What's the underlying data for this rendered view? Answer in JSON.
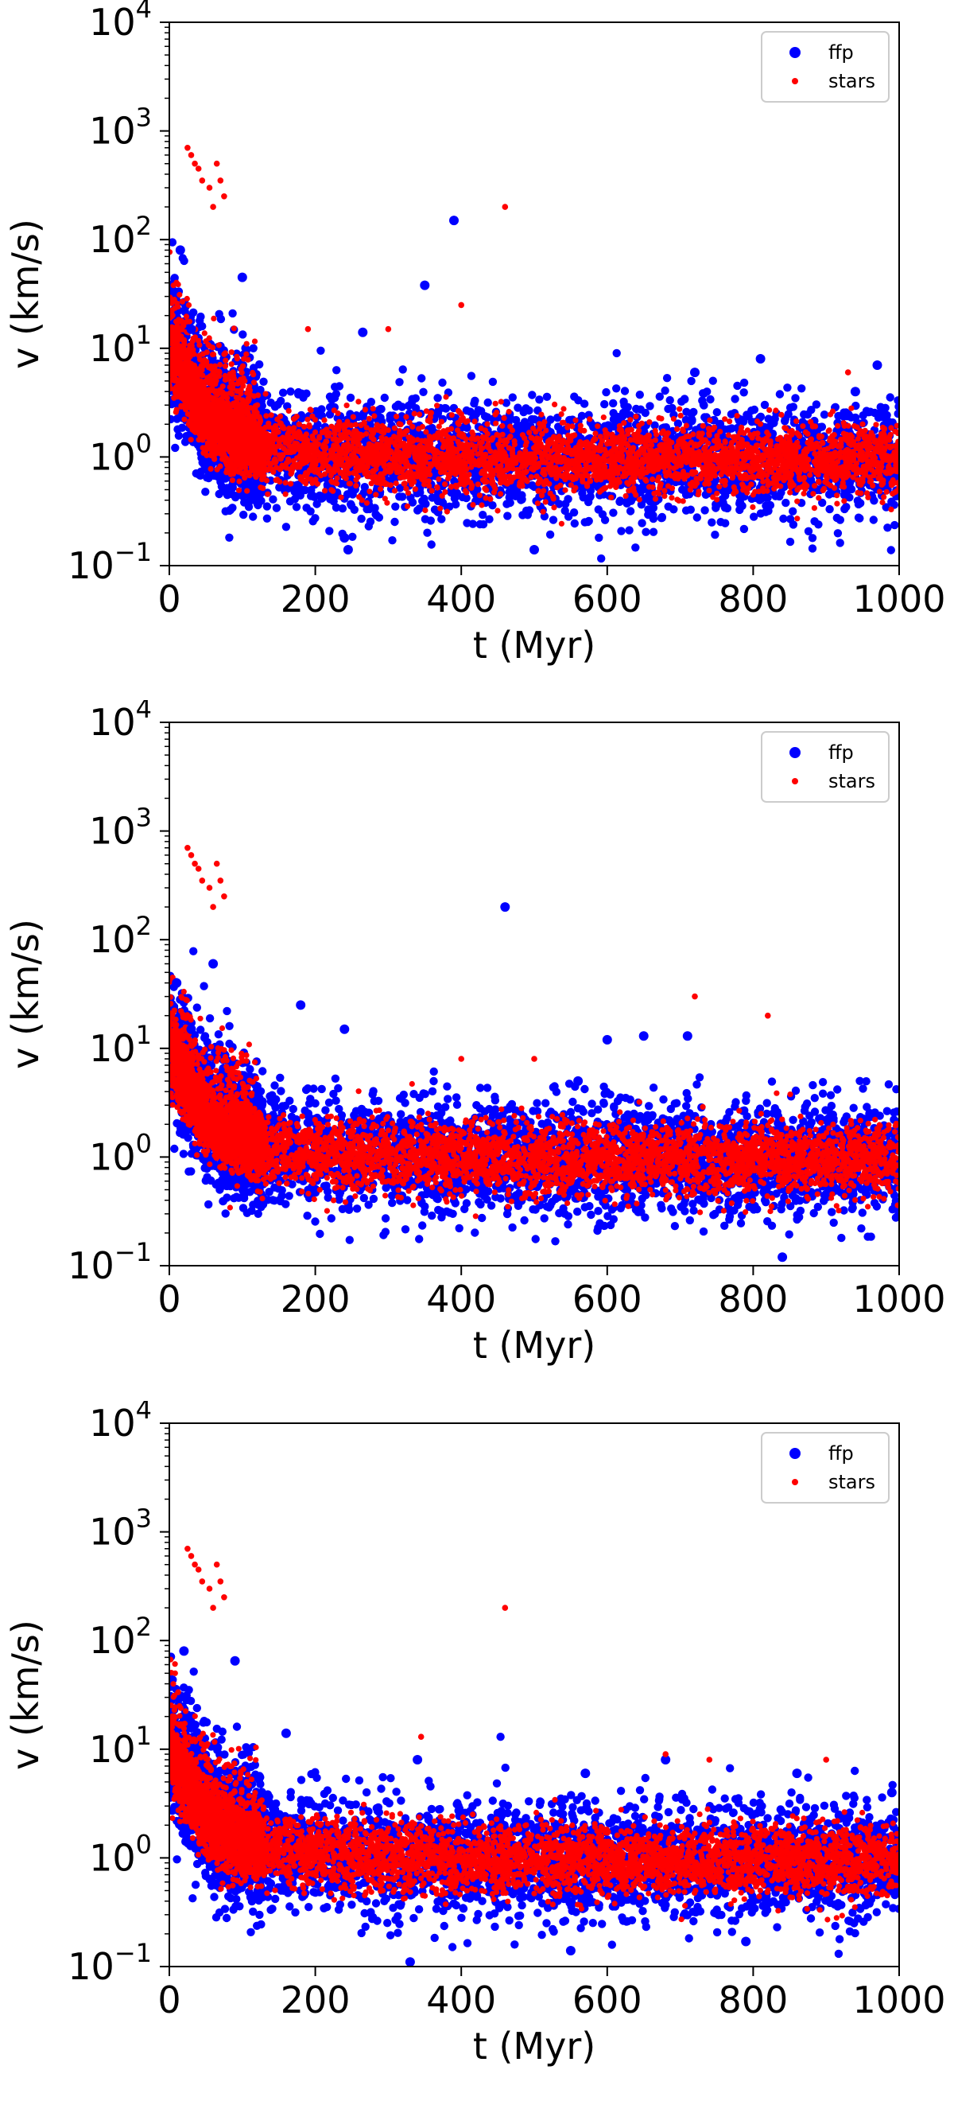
{
  "legend_labels": {
    "ffp": "ffp",
    "stars": "stars"
  },
  "colors": {
    "ffp": "#0000ff",
    "stars": "#ff0000",
    "axes": "#000000"
  },
  "chart_data": [
    {
      "type": "scatter",
      "xlabel": "t (Myr)",
      "ylabel": "v (km/s)",
      "xlim": [
        0,
        1000
      ],
      "ylim": [
        0.1,
        10000
      ],
      "yscale": "log",
      "xticks": [
        "0",
        "200",
        "400",
        "600",
        "800",
        "1000"
      ],
      "yticks": [
        {
          "base": "10",
          "exp": "−1"
        },
        {
          "base": "10",
          "exp": "0"
        },
        {
          "base": "10",
          "exp": "1"
        },
        {
          "base": "10",
          "exp": "2"
        },
        {
          "base": "10",
          "exp": "3"
        },
        {
          "base": "10",
          "exp": "4"
        }
      ],
      "grid": false,
      "legend": "top-right",
      "series": [
        {
          "name": "ffp",
          "color": "#0000ff",
          "points": [
            [
              15,
              80
            ],
            [
              30,
              15
            ],
            [
              100,
              45
            ],
            [
              240,
              0.18
            ],
            [
              245,
              0.14
            ],
            [
              265,
              14
            ],
            [
              350,
              38
            ],
            [
              390,
              150
            ],
            [
              500,
              0.14
            ],
            [
              720,
              6
            ],
            [
              810,
              8
            ],
            [
              940,
              4
            ],
            [
              970,
              7
            ]
          ]
        },
        {
          "name": "stars",
          "color": "#ff0000",
          "points": [
            [
              25,
              700
            ],
            [
              30,
              600
            ],
            [
              35,
              500
            ],
            [
              40,
              450
            ],
            [
              45,
              350
            ],
            [
              55,
              300
            ],
            [
              60,
              200
            ],
            [
              65,
              500
            ],
            [
              70,
              350
            ],
            [
              75,
              250
            ],
            [
              460,
              200
            ],
            [
              190,
              15
            ],
            [
              300,
              15
            ],
            [
              400,
              25
            ],
            [
              930,
              6
            ]
          ]
        }
      ]
    },
    {
      "type": "scatter",
      "xlabel": "t (Myr)",
      "ylabel": "v (km/s)",
      "xlim": [
        0,
        1000
      ],
      "ylim": [
        0.1,
        10000
      ],
      "yscale": "log",
      "xticks": [
        "0",
        "200",
        "400",
        "600",
        "800",
        "1000"
      ],
      "yticks": [
        {
          "base": "10",
          "exp": "−1"
        },
        {
          "base": "10",
          "exp": "0"
        },
        {
          "base": "10",
          "exp": "1"
        },
        {
          "base": "10",
          "exp": "2"
        },
        {
          "base": "10",
          "exp": "3"
        },
        {
          "base": "10",
          "exp": "4"
        }
      ],
      "grid": false,
      "legend": "top-right",
      "series": [
        {
          "name": "ffp",
          "color": "#0000ff",
          "points": [
            [
              10,
              40
            ],
            [
              30,
              15
            ],
            [
              60,
              60
            ],
            [
              180,
              25
            ],
            [
              240,
              15
            ],
            [
              460,
              200
            ],
            [
              560,
              5
            ],
            [
              600,
              12
            ],
            [
              650,
              13
            ],
            [
              710,
              13
            ],
            [
              840,
              0.12
            ],
            [
              960,
              2.5
            ]
          ]
        },
        {
          "name": "stars",
          "color": "#ff0000",
          "points": [
            [
              25,
              700
            ],
            [
              30,
              600
            ],
            [
              35,
              500
            ],
            [
              40,
              450
            ],
            [
              45,
              350
            ],
            [
              55,
              300
            ],
            [
              60,
              200
            ],
            [
              65,
              500
            ],
            [
              70,
              350
            ],
            [
              75,
              250
            ],
            [
              720,
              30
            ],
            [
              820,
              20
            ],
            [
              500,
              8
            ],
            [
              400,
              8
            ]
          ]
        }
      ]
    },
    {
      "type": "scatter",
      "xlabel": "t (Myr)",
      "ylabel": "v (km/s)",
      "xlim": [
        0,
        1000
      ],
      "ylim": [
        0.1,
        10000
      ],
      "yscale": "log",
      "xticks": [
        "0",
        "200",
        "400",
        "600",
        "800",
        "1000"
      ],
      "yticks": [
        {
          "base": "10",
          "exp": "−1"
        },
        {
          "base": "10",
          "exp": "0"
        },
        {
          "base": "10",
          "exp": "1"
        },
        {
          "base": "10",
          "exp": "2"
        },
        {
          "base": "10",
          "exp": "3"
        },
        {
          "base": "10",
          "exp": "4"
        }
      ],
      "grid": false,
      "legend": "top-right",
      "series": [
        {
          "name": "ffp",
          "color": "#0000ff",
          "points": [
            [
              20,
              80
            ],
            [
              90,
              65
            ],
            [
              160,
              14
            ],
            [
              330,
              0.11
            ],
            [
              340,
              8
            ],
            [
              550,
              0.14
            ],
            [
              570,
              6
            ],
            [
              680,
              8
            ],
            [
              790,
              0.17
            ],
            [
              860,
              6
            ],
            [
              990,
              4
            ]
          ]
        },
        {
          "name": "stars",
          "color": "#ff0000",
          "points": [
            [
              25,
              700
            ],
            [
              30,
              600
            ],
            [
              35,
              500
            ],
            [
              40,
              450
            ],
            [
              45,
              350
            ],
            [
              55,
              300
            ],
            [
              60,
              200
            ],
            [
              65,
              500
            ],
            [
              70,
              350
            ],
            [
              75,
              250
            ],
            [
              460,
              200
            ],
            [
              345,
              13
            ],
            [
              680,
              9
            ],
            [
              900,
              8
            ],
            [
              740,
              8
            ]
          ]
        }
      ]
    }
  ]
}
